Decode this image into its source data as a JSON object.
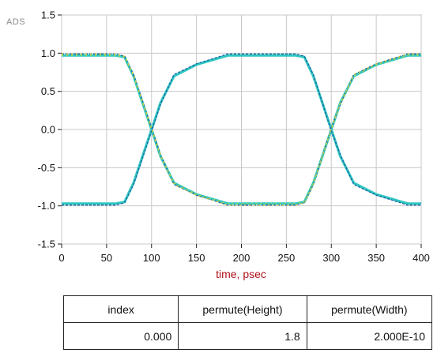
{
  "app": {
    "logo_text": "ADS"
  },
  "chart_data": {
    "type": "line",
    "title": "",
    "xlabel": "time, psec",
    "ylabel": "",
    "xlim": [
      0,
      400
    ],
    "ylim": [
      -1.5,
      1.5
    ],
    "xticks": [
      "0",
      "50",
      "100",
      "150",
      "200",
      "250",
      "300",
      "350",
      "400"
    ],
    "yticks": [
      "1.5",
      "1.0",
      "0.5",
      "0.0",
      "-0.5",
      "-1.0",
      "-1.5"
    ],
    "grid": true,
    "legend": "none",
    "colors": {
      "trace_primary": "#2fc7c0",
      "trace_secondary": "#1b5fa8",
      "trace_accent": "#a8d84a",
      "trace_noise": "#e2c23c",
      "axis_label": "#b0121b"
    },
    "series": [
      {
        "x": [
          0,
          60,
          70,
          80,
          100,
          110,
          125,
          150,
          185,
          200,
          260,
          270,
          280,
          300,
          310,
          325,
          350,
          385,
          400
        ],
        "y": [
          0.97,
          0.97,
          0.95,
          0.7,
          0.0,
          -0.35,
          -0.7,
          -0.85,
          -0.97,
          -0.97,
          -0.97,
          -0.95,
          -0.7,
          0.0,
          0.35,
          0.7,
          0.85,
          0.97,
          0.97
        ]
      },
      {
        "x": [
          0,
          60,
          70,
          80,
          100,
          110,
          125,
          150,
          185,
          200,
          260,
          270,
          280,
          300,
          310,
          325,
          350,
          385,
          400
        ],
        "y": [
          -0.97,
          -0.97,
          -0.95,
          -0.7,
          0.0,
          0.35,
          0.7,
          0.85,
          0.97,
          0.97,
          0.97,
          0.95,
          0.7,
          0.0,
          -0.35,
          -0.7,
          -0.85,
          -0.97,
          -0.97
        ]
      },
      {
        "x": [
          0,
          60,
          70,
          80,
          100,
          110,
          125,
          150,
          185,
          200,
          260,
          270,
          280,
          300,
          310,
          325,
          350,
          385,
          400
        ],
        "y": [
          0.99,
          0.99,
          0.96,
          0.72,
          0.02,
          -0.33,
          -0.72,
          -0.86,
          -0.99,
          -0.99,
          -0.99,
          -0.96,
          -0.72,
          0.02,
          0.33,
          0.72,
          0.86,
          0.99,
          0.99
        ]
      },
      {
        "x": [
          0,
          60,
          70,
          80,
          100,
          110,
          125,
          150,
          185,
          200,
          260,
          270,
          280,
          300,
          310,
          325,
          350,
          385,
          400
        ],
        "y": [
          -0.99,
          -0.99,
          -0.96,
          -0.72,
          -0.02,
          0.33,
          0.72,
          0.86,
          0.99,
          0.99,
          0.99,
          0.96,
          0.72,
          -0.02,
          -0.33,
          -0.72,
          -0.86,
          -0.99,
          -0.99
        ]
      }
    ]
  },
  "results_table": {
    "headers": [
      "index",
      "permute(Height)",
      "permute(Width)"
    ],
    "row": [
      "0.000",
      "1.8",
      "2.000E-10"
    ]
  }
}
